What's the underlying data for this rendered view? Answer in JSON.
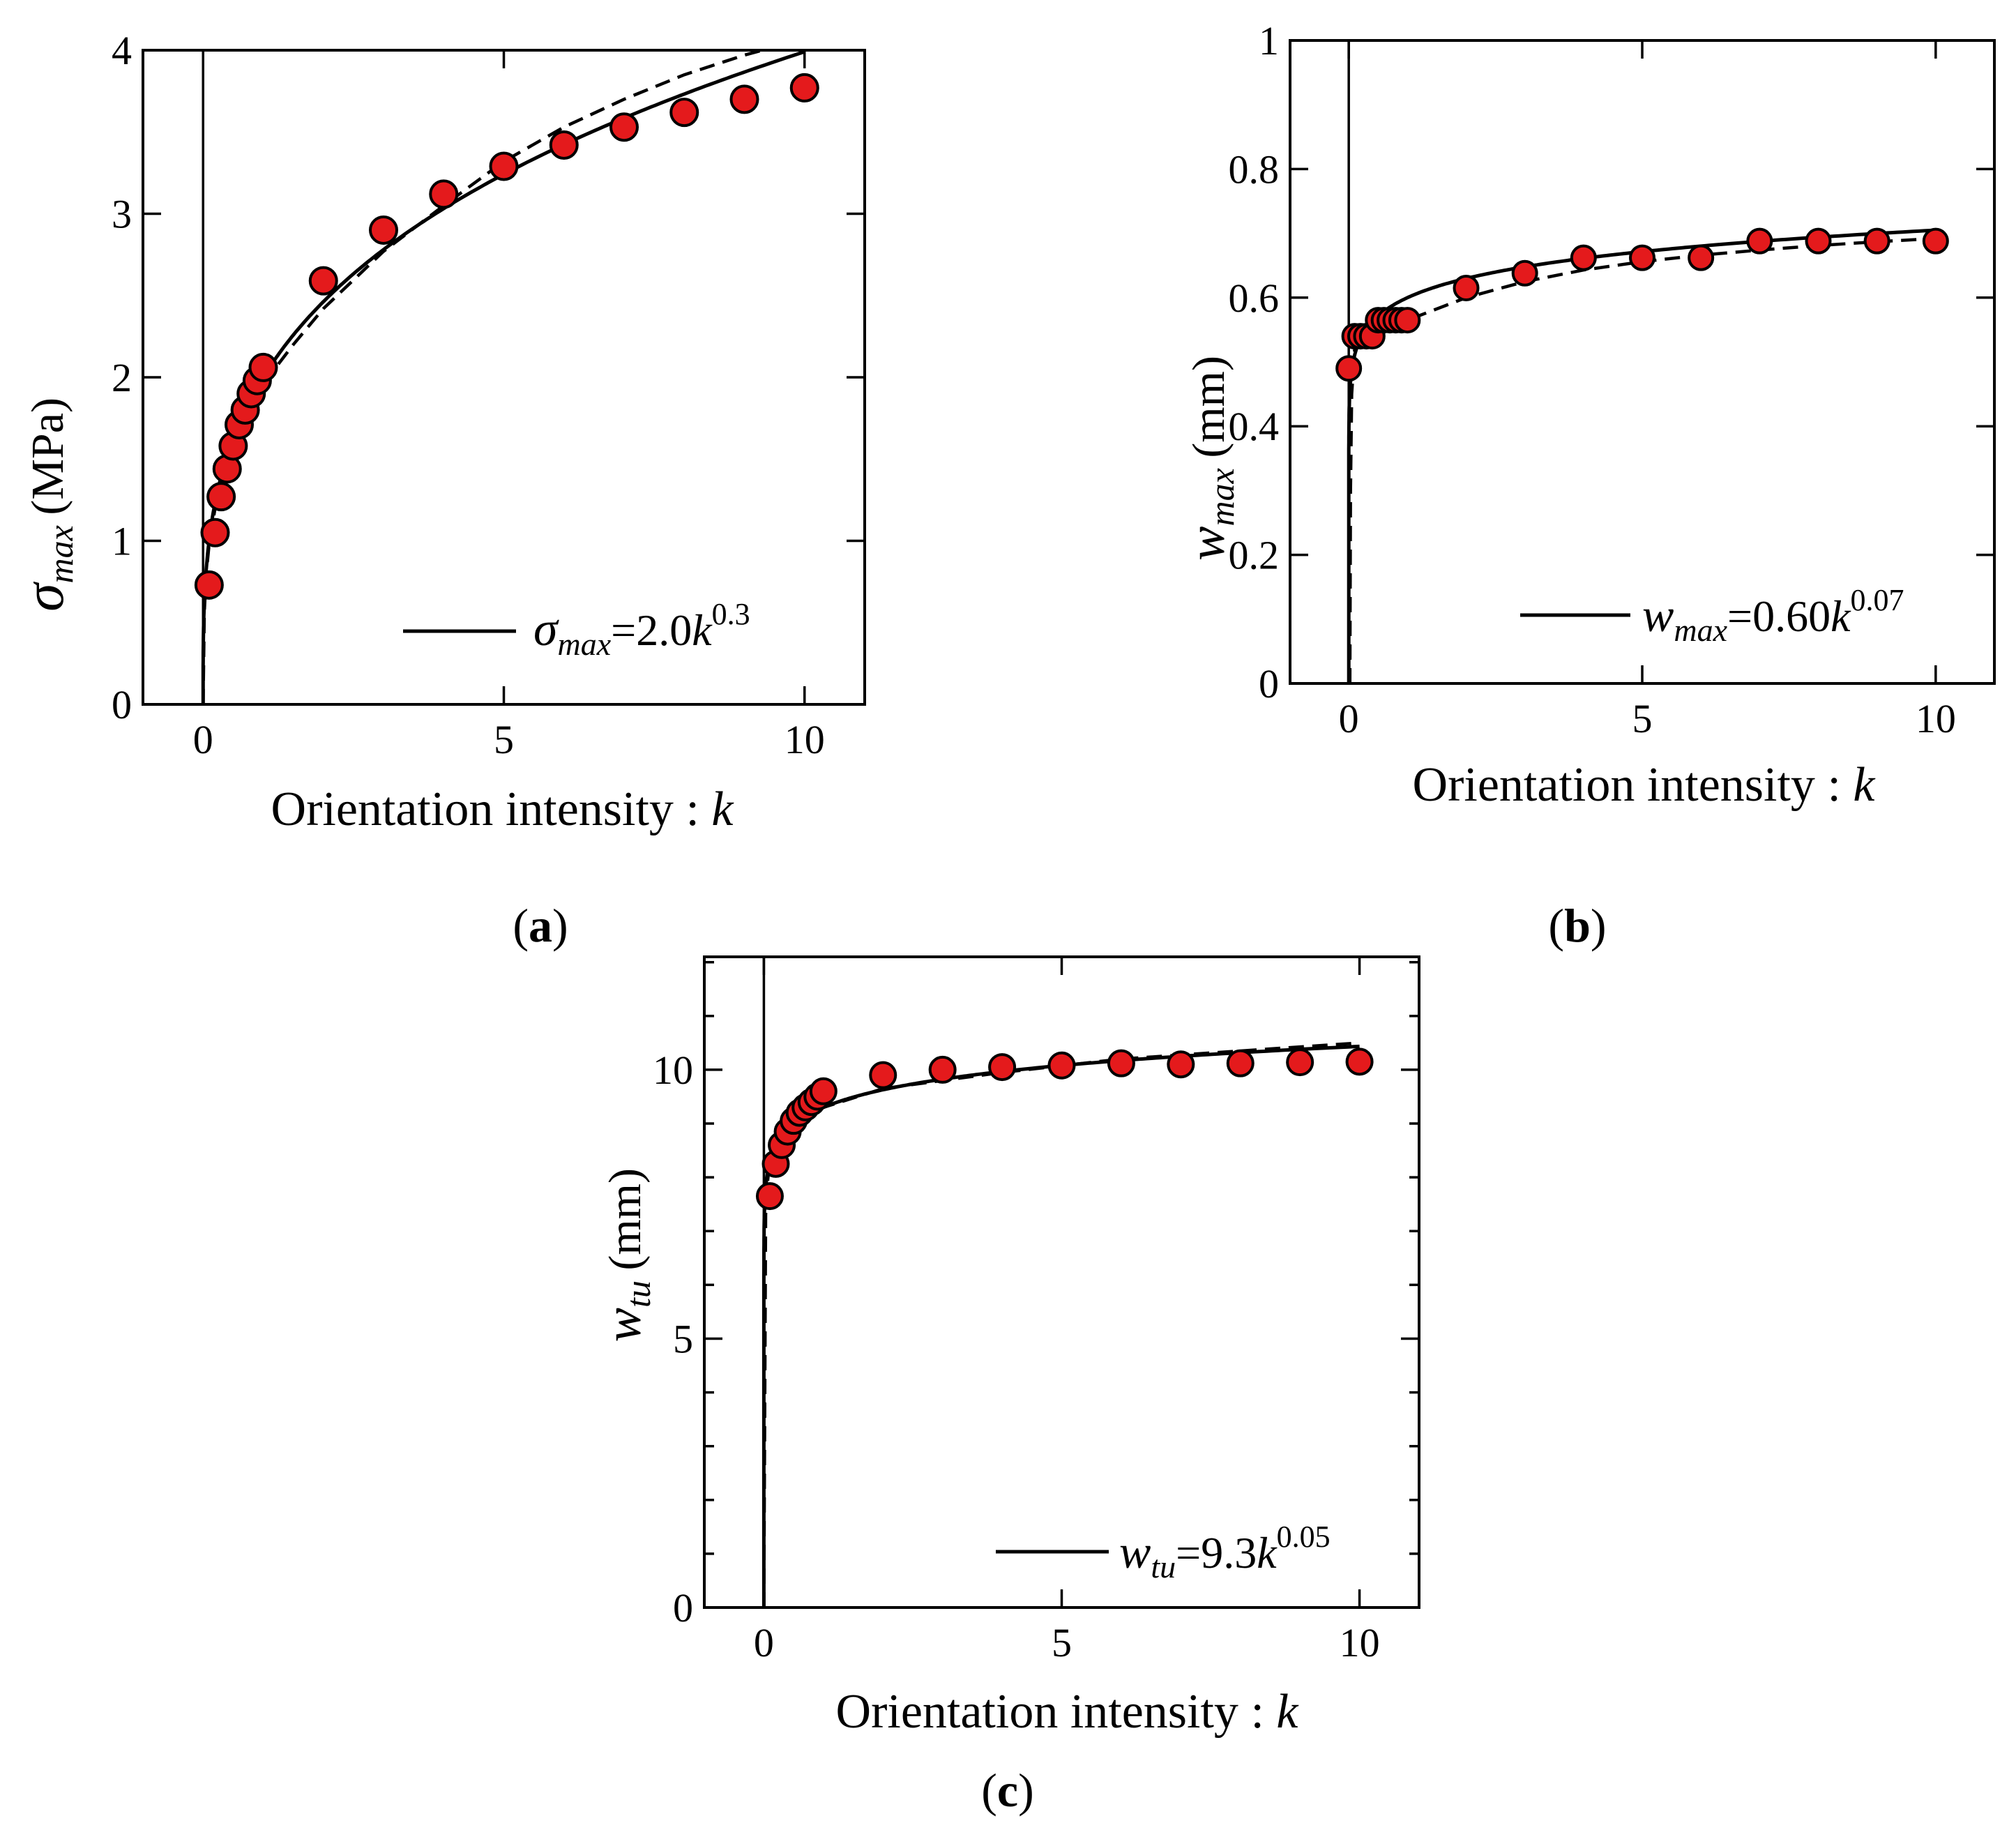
{
  "chart_data": [
    {
      "id": "a",
      "type": "scatter",
      "panel_label": "a",
      "xlabel": "Orientation intensity",
      "xvar": "k",
      "ylabel_symbol": "σ",
      "ylabel_sub": "max",
      "ylabel_unit": "(MPa)",
      "xlim": [
        -1,
        11
      ],
      "ylim": [
        0,
        4
      ],
      "xticks": [
        0,
        5,
        10
      ],
      "xtick_labels": [
        "0",
        "5",
        "10"
      ],
      "yticks": [
        0,
        1,
        2,
        3,
        4
      ],
      "ytick_labels": [
        "0",
        "1",
        "2",
        "3",
        "4"
      ],
      "marker_color": "#e41a1c",
      "legend": {
        "sym": "σ",
        "sub": "max",
        "eq": "=2.0",
        "base": "k",
        "exp": "0.3"
      },
      "fit": {
        "coef": 2.0,
        "exp": 0.3
      },
      "series": [
        {
          "name": "experiment",
          "x": [
            0.1,
            0.2,
            0.3,
            0.4,
            0.5,
            0.6,
            0.7,
            0.8,
            0.9,
            1,
            2,
            3,
            4,
            5,
            6,
            7,
            8,
            9,
            10
          ],
          "y": [
            0.73,
            1.05,
            1.27,
            1.44,
            1.58,
            1.71,
            1.8,
            1.9,
            1.98,
            2.06,
            2.59,
            2.9,
            3.12,
            3.29,
            3.42,
            3.53,
            3.62,
            3.7,
            3.77
          ]
        },
        {
          "name": "dashed",
          "x": [
            0,
            0.02,
            0.05,
            0.1,
            0.2,
            0.3,
            0.5,
            0.7,
            1,
            1.5,
            2,
            3,
            4,
            5,
            6,
            7,
            8,
            9,
            9.3
          ],
          "y": [
            0,
            0.56,
            0.79,
            0.98,
            1.2,
            1.36,
            1.58,
            1.75,
            1.96,
            2.2,
            2.42,
            2.77,
            3.05,
            3.32,
            3.53,
            3.7,
            3.85,
            3.97,
            4.0
          ]
        }
      ]
    },
    {
      "id": "b",
      "type": "scatter",
      "panel_label": "b",
      "xlabel": "Orientation intensity",
      "xvar": "k",
      "ylabel_symbol": "w",
      "ylabel_sub": "max",
      "ylabel_unit": "(mm)",
      "xlim": [
        -1,
        11
      ],
      "ylim": [
        0,
        1
      ],
      "xticks": [
        0,
        5,
        10
      ],
      "xtick_labels": [
        "0",
        "5",
        "10"
      ],
      "yticks": [
        0,
        0.2,
        0.4,
        0.6,
        0.8,
        1
      ],
      "ytick_labels": [
        "0",
        "0.2",
        "0.4",
        "0.6",
        "0.8",
        "1"
      ],
      "marker_color": "#e41a1c",
      "legend": {
        "sym": "w",
        "sub": "max",
        "eq": "=0.60",
        "base": "k",
        "exp": "0.07"
      },
      "fit": {
        "coef": 0.6,
        "exp": 0.07
      },
      "series": [
        {
          "name": "experiment",
          "x": [
            0,
            0.1,
            0.2,
            0.3,
            0.4,
            0.5,
            0.6,
            0.7,
            0.8,
            0.9,
            1,
            2,
            3,
            4,
            5,
            6,
            7,
            8,
            9,
            10
          ],
          "y": [
            0.49,
            0.54,
            0.54,
            0.54,
            0.54,
            0.565,
            0.565,
            0.565,
            0.565,
            0.565,
            0.565,
            0.615,
            0.638,
            0.662,
            0.662,
            0.662,
            0.688,
            0.688,
            0.688,
            0.688
          ]
        },
        {
          "name": "dashed",
          "x": [
            0.02,
            0.03,
            0.05,
            0.1,
            0.2,
            0.5,
            1,
            2,
            3,
            4,
            5,
            6,
            7,
            8,
            9,
            10
          ],
          "y": [
            0.0,
            0.3,
            0.45,
            0.52,
            0.54,
            0.553,
            0.565,
            0.6,
            0.625,
            0.643,
            0.656,
            0.666,
            0.674,
            0.681,
            0.687,
            0.692
          ]
        }
      ]
    },
    {
      "id": "c",
      "type": "scatter",
      "panel_label": "c",
      "xlabel": "Orientation intensity",
      "xvar": "k",
      "ylabel_symbol": "w",
      "ylabel_sub": "tu",
      "ylabel_unit": "(mm)",
      "xlim": [
        -1,
        11
      ],
      "ylim": [
        0,
        12.1
      ],
      "xticks": [
        0,
        5,
        10
      ],
      "xtick_labels": [
        "0",
        "5",
        "10"
      ],
      "yticks": [
        0,
        5,
        10
      ],
      "ytick_labels": [
        "0",
        "5",
        "10"
      ],
      "minor_yticks": [
        1,
        2,
        3,
        4,
        6,
        7,
        8,
        9,
        11,
        12
      ],
      "marker_color": "#e41a1c",
      "legend": {
        "sym": "w",
        "sub": "tu",
        "eq": "=9.3",
        "base": "k",
        "exp": "0.05"
      },
      "fit": {
        "coef": 9.3,
        "exp": 0.05
      },
      "series": [
        {
          "name": "experiment",
          "x": [
            0.1,
            0.2,
            0.3,
            0.4,
            0.5,
            0.6,
            0.7,
            0.8,
            0.9,
            1,
            2,
            3,
            4,
            5,
            6,
            7,
            8,
            9,
            10
          ],
          "y": [
            7.65,
            8.25,
            8.6,
            8.85,
            9.05,
            9.2,
            9.3,
            9.4,
            9.5,
            9.6,
            9.9,
            10.0,
            10.05,
            10.08,
            10.12,
            10.1,
            10.12,
            10.14,
            10.15
          ]
        },
        {
          "name": "dashed",
          "x": [
            0.0,
            0.03,
            0.05,
            0.1,
            0.2,
            0.5,
            1,
            2,
            4,
            6,
            8,
            10
          ],
          "y": [
            0.0,
            7.3,
            7.8,
            8.3,
            8.6,
            9.0,
            9.3,
            9.65,
            9.95,
            10.2,
            10.35,
            10.5
          ]
        }
      ]
    }
  ]
}
